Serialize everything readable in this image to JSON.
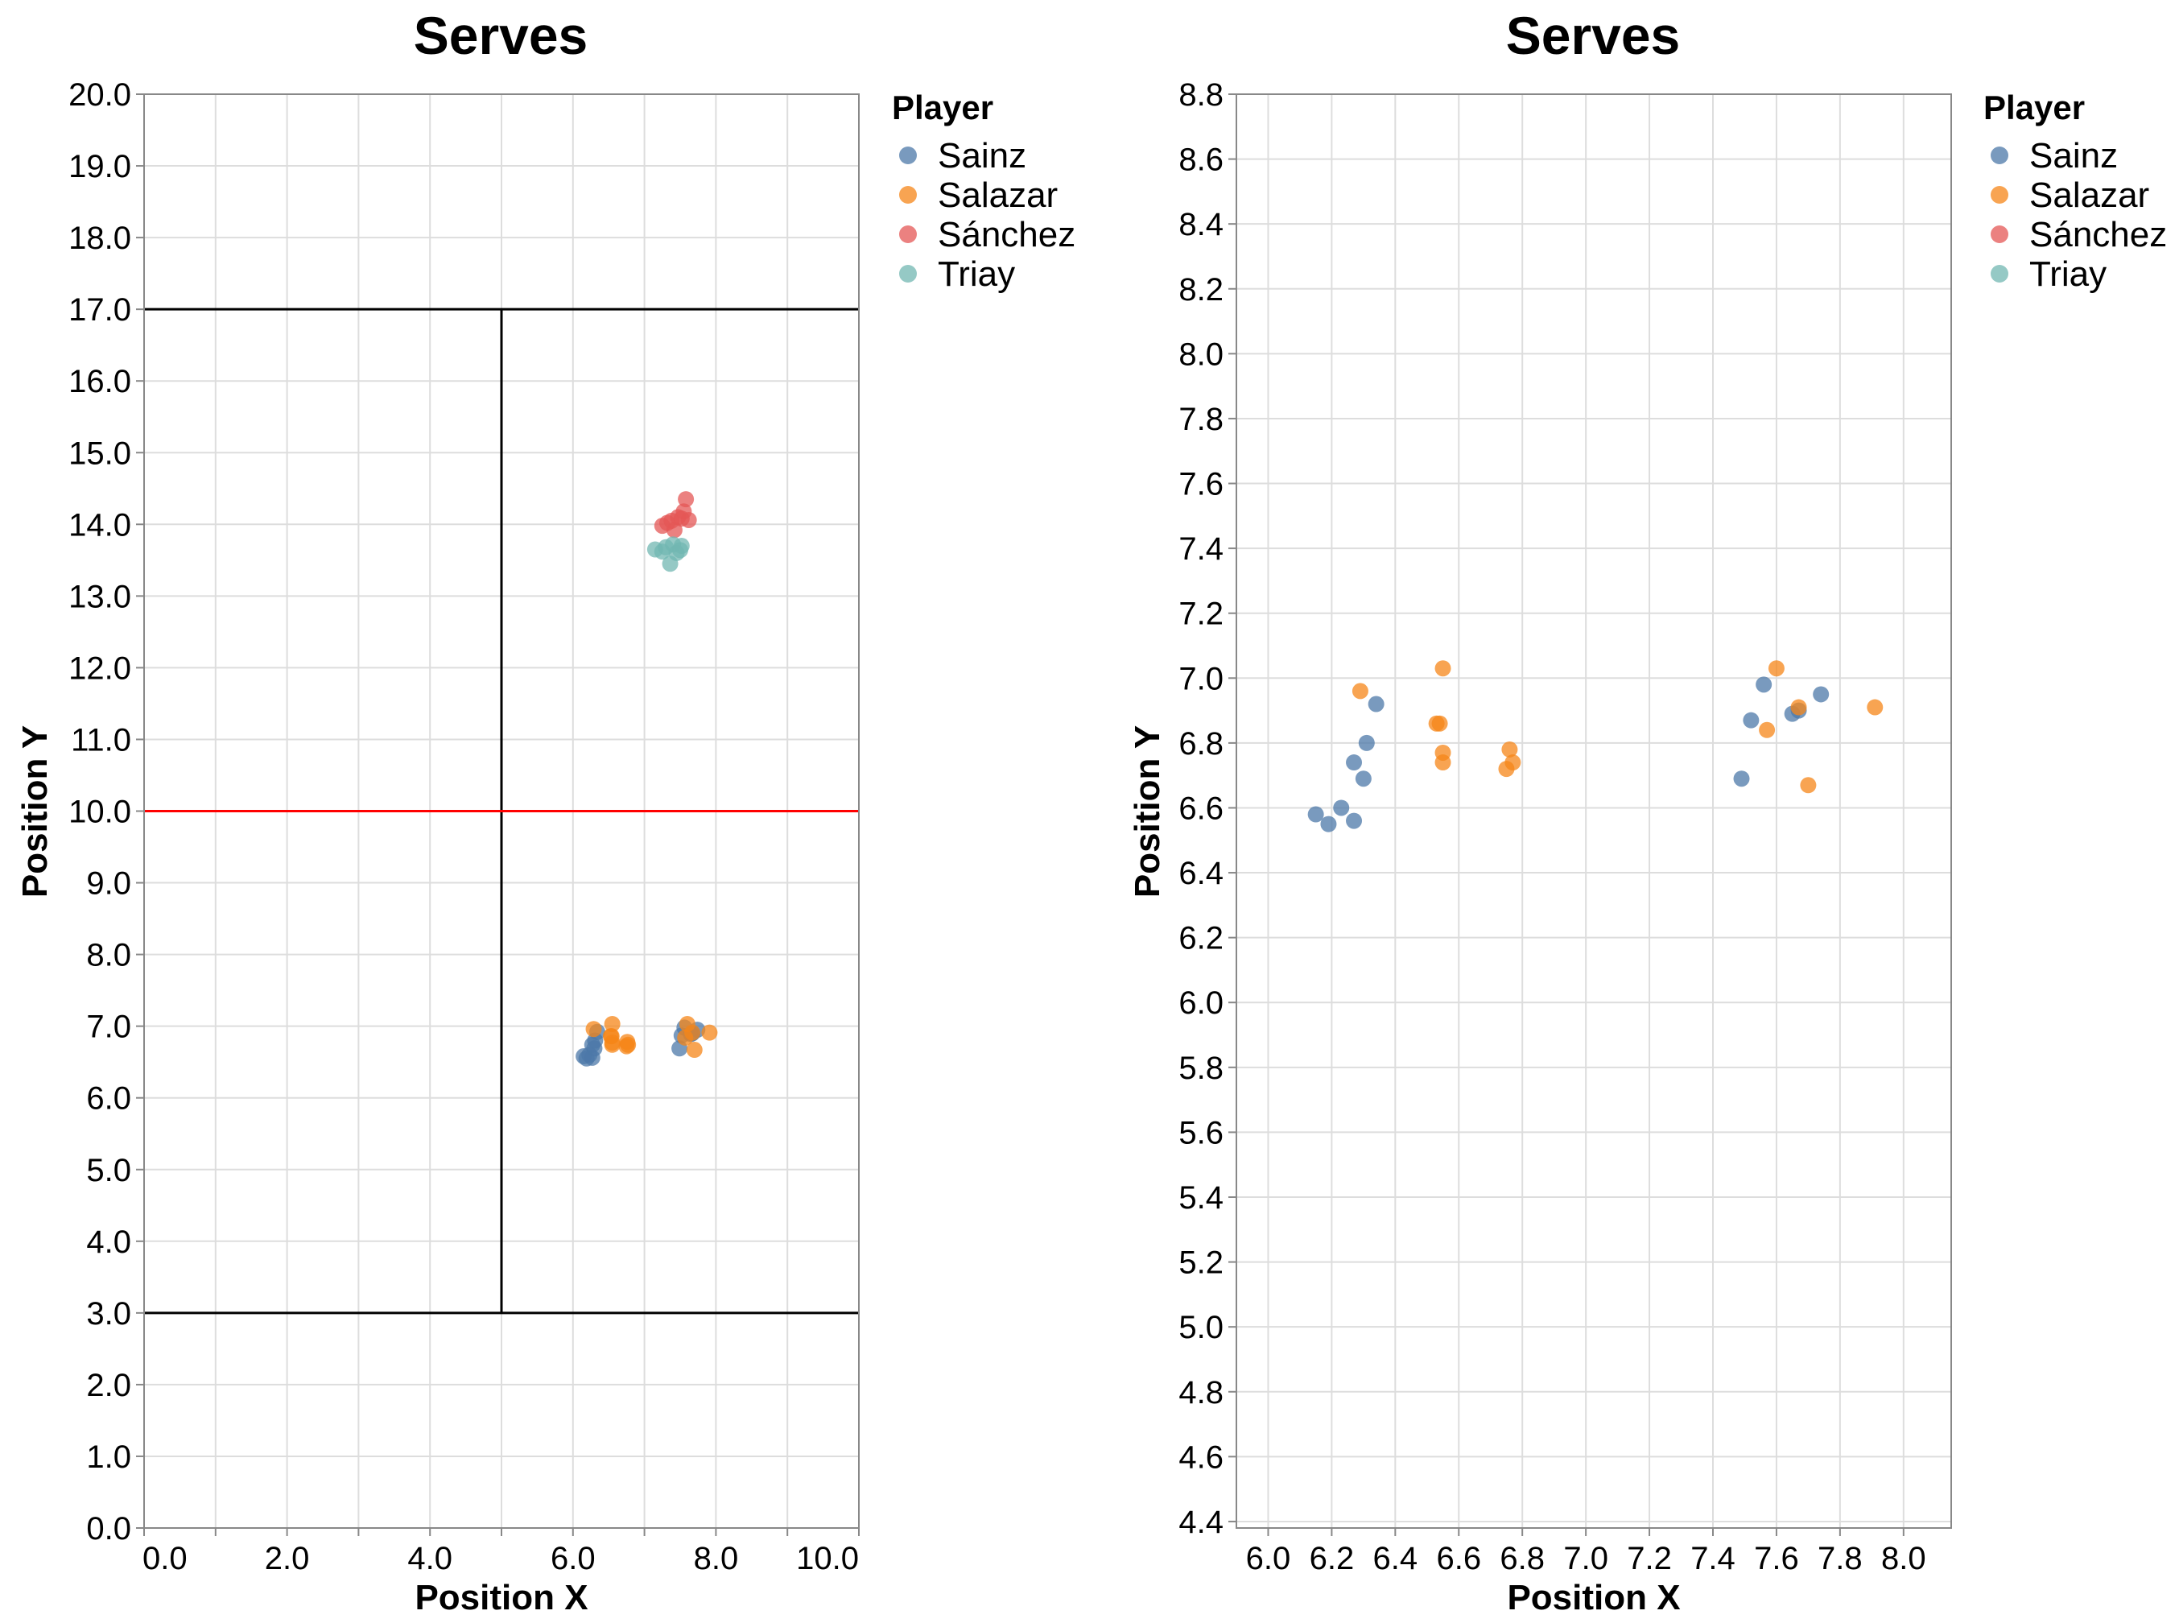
{
  "chart_data": [
    {
      "type": "scatter",
      "title": "Serves",
      "xlabel": "Position X",
      "ylabel": "Position Y",
      "xlim": [
        0,
        10
      ],
      "ylim": [
        0,
        20
      ],
      "xticks": [
        "0.0",
        "2.0",
        "4.0",
        "6.0",
        "8.0",
        "10.0"
      ],
      "yticks": [
        "0.0",
        "1.0",
        "2.0",
        "3.0",
        "4.0",
        "5.0",
        "6.0",
        "7.0",
        "8.0",
        "9.0",
        "10.0",
        "11.0",
        "12.0",
        "13.0",
        "14.0",
        "15.0",
        "16.0",
        "17.0",
        "18.0",
        "19.0",
        "20.0"
      ],
      "grid": true,
      "legend": {
        "title": "Player",
        "position": "right"
      },
      "court_lines": {
        "black": [
          [
            [
              0,
              17
            ],
            [
              10,
              17
            ]
          ],
          [
            [
              0,
              3
            ],
            [
              10,
              3
            ]
          ],
          [
            [
              5,
              3
            ],
            [
              5,
              17
            ]
          ]
        ],
        "red": [
          [
            [
              0,
              10
            ],
            [
              10,
              10
            ]
          ]
        ]
      },
      "series": [
        {
          "name": "Sainz",
          "color": "#4c78a8",
          "points": [
            [
              6.15,
              6.58
            ],
            [
              6.19,
              6.55
            ],
            [
              6.23,
              6.6
            ],
            [
              6.27,
              6.56
            ],
            [
              6.27,
              6.74
            ],
            [
              6.3,
              6.69
            ],
            [
              6.31,
              6.8
            ],
            [
              6.34,
              6.92
            ],
            [
              7.49,
              6.69
            ],
            [
              7.52,
              6.87
            ],
            [
              7.56,
              6.98
            ],
            [
              7.65,
              6.89
            ],
            [
              7.67,
              6.9
            ],
            [
              7.74,
              6.95
            ]
          ]
        },
        {
          "name": "Salazar",
          "color": "#f58518",
          "points": [
            [
              6.29,
              6.96
            ],
            [
              6.53,
              6.86
            ],
            [
              6.54,
              6.86
            ],
            [
              6.55,
              6.77
            ],
            [
              6.55,
              6.74
            ],
            [
              6.55,
              7.03
            ],
            [
              6.75,
              6.72
            ],
            [
              6.76,
              6.78
            ],
            [
              6.77,
              6.74
            ],
            [
              7.57,
              6.84
            ],
            [
              7.6,
              7.03
            ],
            [
              7.67,
              6.91
            ],
            [
              7.7,
              6.67
            ],
            [
              7.91,
              6.91
            ]
          ]
        },
        {
          "name": "Sánchez",
          "color": "#e45756",
          "points": [
            [
              7.25,
              13.98
            ],
            [
              7.32,
              14.02
            ],
            [
              7.38,
              14.05
            ],
            [
              7.42,
              13.92
            ],
            [
              7.47,
              14.1
            ],
            [
              7.52,
              14.08
            ],
            [
              7.55,
              14.18
            ],
            [
              7.58,
              14.35
            ],
            [
              7.62,
              14.06
            ]
          ]
        },
        {
          "name": "Triay",
          "color": "#72b7b2",
          "points": [
            [
              7.15,
              13.65
            ],
            [
              7.25,
              13.62
            ],
            [
              7.3,
              13.68
            ],
            [
              7.36,
              13.45
            ],
            [
              7.4,
              13.72
            ],
            [
              7.45,
              13.6
            ],
            [
              7.5,
              13.64
            ],
            [
              7.52,
              13.7
            ]
          ]
        }
      ]
    },
    {
      "type": "scatter",
      "title": "Serves",
      "xlabel": "Position X",
      "ylabel": "Position Y",
      "xlim": [
        5.9,
        8.15
      ],
      "ylim": [
        4.38,
        8.8
      ],
      "xticks": [
        "6.0",
        "6.2",
        "6.4",
        "6.6",
        "6.8",
        "7.0",
        "7.2",
        "7.4",
        "7.6",
        "7.8",
        "8.0"
      ],
      "yticks": [
        "4.4",
        "4.6",
        "4.8",
        "5.0",
        "5.2",
        "5.4",
        "5.6",
        "5.8",
        "6.0",
        "6.2",
        "6.4",
        "6.6",
        "6.8",
        "7.0",
        "7.2",
        "7.4",
        "7.6",
        "7.8",
        "8.0",
        "8.2",
        "8.4",
        "8.6",
        "8.8"
      ],
      "grid": true,
      "legend": {
        "title": "Player",
        "position": "right"
      },
      "series": [
        {
          "name": "Sainz",
          "color": "#4c78a8",
          "points": [
            [
              6.15,
              6.58
            ],
            [
              6.19,
              6.55
            ],
            [
              6.23,
              6.6
            ],
            [
              6.27,
              6.56
            ],
            [
              6.27,
              6.74
            ],
            [
              6.3,
              6.69
            ],
            [
              6.31,
              6.8
            ],
            [
              6.34,
              6.92
            ],
            [
              7.49,
              6.69
            ],
            [
              7.52,
              6.87
            ],
            [
              7.56,
              6.98
            ],
            [
              7.65,
              6.89
            ],
            [
              7.67,
              6.9
            ],
            [
              7.74,
              6.95
            ]
          ]
        },
        {
          "name": "Salazar",
          "color": "#f58518",
          "points": [
            [
              6.29,
              6.96
            ],
            [
              6.53,
              6.86
            ],
            [
              6.54,
              6.86
            ],
            [
              6.55,
              6.77
            ],
            [
              6.55,
              6.74
            ],
            [
              6.55,
              7.03
            ],
            [
              6.75,
              6.72
            ],
            [
              6.76,
              6.78
            ],
            [
              6.77,
              6.74
            ],
            [
              7.57,
              6.84
            ],
            [
              7.6,
              7.03
            ],
            [
              7.67,
              6.91
            ],
            [
              7.7,
              6.67
            ],
            [
              7.91,
              6.91
            ]
          ]
        },
        {
          "name": "Sánchez",
          "color": "#e45756",
          "points": []
        },
        {
          "name": "Triay",
          "color": "#72b7b2",
          "points": []
        }
      ]
    }
  ]
}
